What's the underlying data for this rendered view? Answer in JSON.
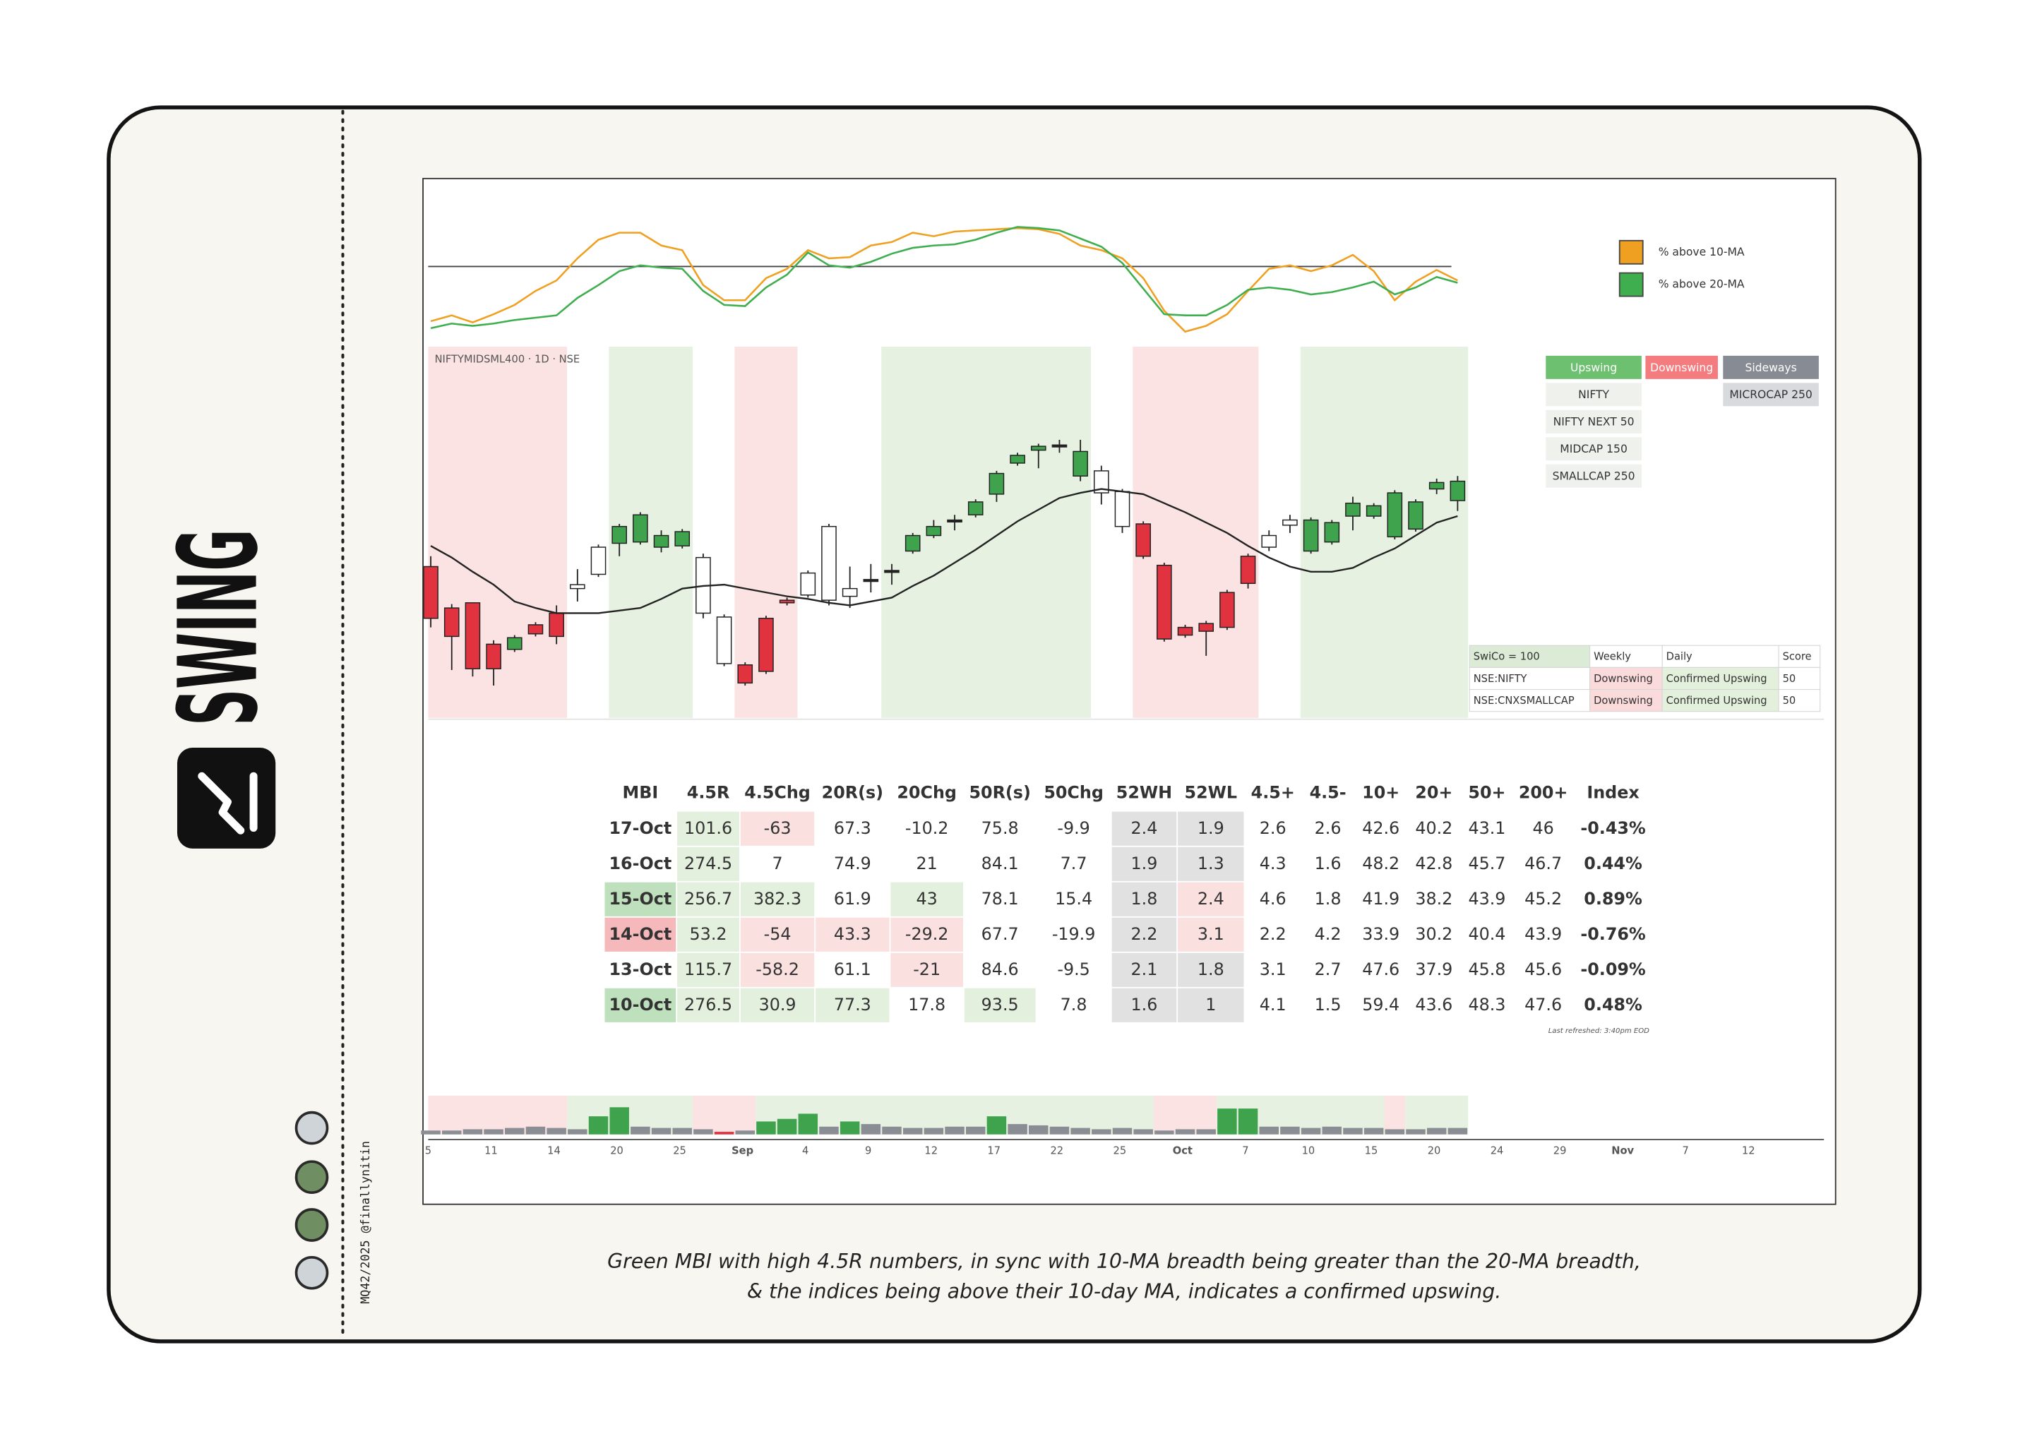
{
  "brand": "SWING",
  "credit": "MQ42/2025 @finallynitin",
  "caption": [
    "Green MBI with high 4.5R numbers, in sync with 10-MA breadth being greater than the 20-MA breadth,",
    "& the indices being above their 10-day MA, indicates a confirmed upswing."
  ],
  "breadth_chart": {
    "type": "line",
    "ylim": [
      0,
      100
    ],
    "reference": 60,
    "series": [
      {
        "name": "% above 10-MA",
        "color": "#f0a020",
        "values": [
          13,
          18,
          12,
          19,
          27,
          39,
          48,
          67,
          83,
          89,
          89,
          78,
          74,
          44,
          31,
          31,
          50,
          58,
          74,
          67,
          68,
          78,
          81,
          89,
          86,
          90,
          91,
          92,
          93,
          92,
          88,
          78,
          74,
          67,
          50,
          22,
          4,
          9,
          19,
          39,
          58,
          61,
          56,
          61,
          70,
          56,
          31,
          47,
          57,
          48
        ]
      },
      {
        "name": "% above 20-MA",
        "color": "#3fae4f",
        "values": [
          7,
          11,
          9,
          11,
          14,
          16,
          18,
          33,
          44,
          56,
          61,
          59,
          58,
          39,
          27,
          26,
          42,
          53,
          72,
          61,
          59,
          64,
          71,
          76,
          78,
          79,
          83,
          89,
          94,
          93,
          91,
          84,
          77,
          63,
          41,
          19,
          18,
          18,
          27,
          40,
          42,
          40,
          36,
          38,
          42,
          47,
          36,
          42,
          51,
          46
        ]
      }
    ]
  },
  "price_chart": {
    "type": "candlestick",
    "title": "NIFTYMIDSML400 · 1D · NSE",
    "ylim": [
      0,
      287
    ],
    "open": [
      117,
      85,
      89,
      57,
      53,
      72,
      81,
      100,
      111,
      135,
      136,
      132,
      133,
      81,
      42,
      41,
      77,
      91,
      95,
      91,
      94,
      107,
      114,
      129,
      141,
      153,
      157,
      173,
      197,
      207,
      211,
      187,
      174,
      148,
      150,
      118,
      70,
      73,
      97,
      125,
      132,
      149,
      129,
      136,
      156,
      156,
      140,
      146,
      177,
      168
    ],
    "high": [
      125,
      88,
      89,
      60,
      64,
      74,
      87,
      115,
      134,
      150,
      159,
      145,
      146,
      127,
      80,
      43,
      79,
      93,
      114,
      150,
      117,
      119,
      119,
      143,
      153,
      157,
      169,
      191,
      205,
      212,
      215,
      215,
      195,
      177,
      152,
      120,
      72,
      75,
      99,
      127,
      145,
      157,
      155,
      153,
      171,
      166,
      176,
      169,
      185,
      187
    ],
    "low": [
      70,
      37,
      32,
      25,
      51,
      63,
      57,
      90,
      109,
      125,
      134,
      128,
      131,
      77,
      40,
      25,
      34,
      87,
      93,
      87,
      85,
      97,
      103,
      127,
      139,
      145,
      155,
      167,
      195,
      193,
      205,
      183,
      165,
      143,
      123,
      59,
      62,
      48,
      68,
      100,
      129,
      143,
      127,
      134,
      145,
      154,
      138,
      144,
      173,
      160
    ],
    "close": [
      77,
      63,
      38,
      38,
      62,
      65,
      63,
      103,
      132,
      148,
      157,
      141,
      144,
      124,
      78,
      27,
      36,
      89,
      112,
      148,
      100,
      107,
      114,
      141,
      148,
      153,
      167,
      189,
      203,
      210,
      211,
      206,
      191,
      175,
      125,
      61,
      64,
      67,
      70,
      104,
      141,
      153,
      153,
      151,
      166,
      164,
      174,
      167,
      182,
      183
    ],
    "colors": [
      "#e0323f",
      "#e0323f",
      "#e0323f",
      "#e0323f",
      "#3fa34d",
      "#e0323f",
      "#e0323f",
      "#ffffff",
      "#ffffff",
      "#3fa34d",
      "#3fa34d",
      "#3fa34d",
      "#3fa34d",
      "#ffffff",
      "#ffffff",
      "#e0323f",
      "#e0323f",
      "#e0323f",
      "#ffffff",
      "#ffffff",
      "#ffffff",
      "#222222",
      "#222222",
      "#3fa34d",
      "#3fa34d",
      "#222222",
      "#3fa34d",
      "#3fa34d",
      "#3fa34d",
      "#3fa34d",
      "#222222",
      "#3fa34d",
      "#ffffff",
      "#ffffff",
      "#e0323f",
      "#e0323f",
      "#e0323f",
      "#e0323f",
      "#e0323f",
      "#e0323f",
      "#ffffff",
      "#ffffff",
      "#3fa34d",
      "#3fa34d",
      "#3fa34d",
      "#3fa34d",
      "#3fa34d",
      "#3fa34d",
      "#3fa34d",
      "#3fa34d"
    ],
    "ma": [
      133,
      124,
      113,
      103,
      90,
      85,
      81,
      81,
      81,
      83,
      85,
      92,
      100,
      102,
      103,
      100,
      97,
      94,
      92,
      89,
      87,
      90,
      93,
      102,
      110,
      120,
      130,
      141,
      152,
      161,
      170,
      174,
      177,
      175,
      173,
      166,
      159,
      151,
      143,
      133,
      124,
      117,
      113,
      113,
      116,
      124,
      131,
      141,
      151,
      156
    ],
    "ma_color": "#222222",
    "bands": [
      {
        "start": 0,
        "end": 6,
        "color": "#fbe3e3"
      },
      {
        "start": 9,
        "end": 12,
        "color": "#e6f1e1"
      },
      {
        "start": 15,
        "end": 17,
        "color": "#fbe3e3"
      },
      {
        "start": 22,
        "end": 31,
        "color": "#e6f1e1"
      },
      {
        "start": 34,
        "end": 39,
        "color": "#fbe3e3"
      },
      {
        "start": 42,
        "end": 49,
        "color": "#e6f1e1"
      }
    ]
  },
  "volume": {
    "type": "bar",
    "ylim": [
      0,
      30
    ],
    "values": [
      3,
      3,
      4,
      4,
      5,
      6,
      5,
      4,
      14,
      21,
      6,
      5,
      5,
      4,
      2,
      3,
      10,
      12,
      16,
      6,
      10,
      8,
      6,
      5,
      5,
      6,
      6,
      14,
      8,
      7,
      6,
      5,
      4,
      5,
      4,
      3,
      4,
      4,
      20,
      20,
      6,
      6,
      5,
      6,
      5,
      5,
      4,
      4,
      5,
      5
    ],
    "colors": [
      "#8a8d94",
      "#8a8d94",
      "#8a8d94",
      "#8a8d94",
      "#8a8d94",
      "#8a8d94",
      "#8a8d94",
      "#8a8d94",
      "#3fa34d",
      "#3fa34d",
      "#8a8d94",
      "#8a8d94",
      "#8a8d94",
      "#8a8d94",
      "#e0323f",
      "#8a8d94",
      "#3fa34d",
      "#3fa34d",
      "#3fa34d",
      "#8a8d94",
      "#3fa34d",
      "#8a8d94",
      "#8a8d94",
      "#8a8d94",
      "#8a8d94",
      "#8a8d94",
      "#8a8d94",
      "#3fa34d",
      "#8a8d94",
      "#8a8d94",
      "#8a8d94",
      "#8a8d94",
      "#8a8d94",
      "#8a8d94",
      "#8a8d94",
      "#8a8d94",
      "#8a8d94",
      "#8a8d94",
      "#3fa34d",
      "#3fa34d",
      "#8a8d94",
      "#8a8d94",
      "#8a8d94",
      "#8a8d94",
      "#8a8d94",
      "#8a8d94",
      "#8a8d94",
      "#8a8d94",
      "#8a8d94",
      "#8a8d94"
    ],
    "bands": [
      {
        "start": 0,
        "end": 6,
        "color": "#fbe3e3"
      },
      {
        "start": 7,
        "end": 12,
        "color": "#e6f1e1"
      },
      {
        "start": 13,
        "end": 15,
        "color": "#fbe3e3"
      },
      {
        "start": 16,
        "end": 34,
        "color": "#e6f1e1"
      },
      {
        "start": 35,
        "end": 37,
        "color": "#fbe3e3"
      },
      {
        "start": 38,
        "end": 45,
        "color": "#e6f1e1"
      },
      {
        "start": 46,
        "end": 46,
        "color": "#fbe3e3"
      },
      {
        "start": 47,
        "end": 49,
        "color": "#e6f1e1"
      }
    ]
  },
  "x_axis": {
    "labels": [
      5,
      11,
      14,
      20,
      25,
      "Sep",
      4,
      9,
      12,
      17,
      22,
      25,
      "Oct",
      7,
      10,
      15,
      20,
      24,
      29,
      "Nov",
      7,
      12
    ]
  },
  "status": {
    "headers": [
      "Upswing",
      "Downswing",
      "Sideways"
    ],
    "columns": [
      [
        "NIFTY",
        "NIFTY NEXT 50",
        "MIDCAP 150",
        "SMALLCAP 250"
      ],
      [],
      [
        "MICROCAP 250"
      ]
    ]
  },
  "swico": {
    "header": [
      "SwiCo = 100",
      "Weekly",
      "Daily",
      "Score"
    ],
    "rows": [
      [
        "NSE:NIFTY",
        "Downswing",
        "Confirmed Upswing",
        "50"
      ],
      [
        "NSE:CNXSMALLCAP",
        "Downswing",
        "Confirmed Upswing",
        "50"
      ]
    ]
  },
  "mbi": {
    "header": [
      "MBI",
      "4.5R",
      "4.5Chg",
      "20R(s)",
      "20Chg",
      "50R(s)",
      "50Chg",
      "52WH",
      "52WL",
      "4.5+",
      "4.5-",
      "10+",
      "20+",
      "50+",
      "200+",
      "Index"
    ],
    "rows": [
      [
        "17-Oct",
        "101.6",
        "-63",
        "67.3",
        "-10.2",
        "75.8",
        "-9.9",
        "2.4",
        "1.9",
        "2.6",
        "2.6",
        "42.6",
        "40.2",
        "43.1",
        "46",
        "-0.43%"
      ],
      [
        "16-Oct",
        "274.5",
        "7",
        "74.9",
        "21",
        "84.1",
        "7.7",
        "1.9",
        "1.3",
        "4.3",
        "1.6",
        "48.2",
        "42.8",
        "45.7",
        "46.7",
        "0.44%"
      ],
      [
        "15-Oct",
        "256.7",
        "382.3",
        "61.9",
        "43",
        "78.1",
        "15.4",
        "1.8",
        "2.4",
        "4.6",
        "1.8",
        "41.9",
        "38.2",
        "43.9",
        "45.2",
        "0.89%"
      ],
      [
        "14-Oct",
        "53.2",
        "-54",
        "43.3",
        "-29.2",
        "67.7",
        "-19.9",
        "2.2",
        "3.1",
        "2.2",
        "4.2",
        "33.9",
        "30.2",
        "40.4",
        "43.9",
        "-0.76%"
      ],
      [
        "13-Oct",
        "115.7",
        "-58.2",
        "61.1",
        "-21",
        "84.6",
        "-9.5",
        "2.1",
        "1.8",
        "3.1",
        "2.7",
        "47.6",
        "37.9",
        "45.8",
        "45.6",
        "-0.09%"
      ],
      [
        "10-Oct",
        "276.5",
        "30.9",
        "77.3",
        "17.8",
        "93.5",
        "7.8",
        "1.6",
        "1",
        "4.1",
        "1.5",
        "59.4",
        "43.6",
        "48.3",
        "47.6",
        "0.48%"
      ]
    ],
    "cell_colors": [
      [
        null,
        "#e2f0dd",
        "#fbe0e0",
        null,
        null,
        null,
        null,
        "#e1e1e1",
        "#e1e1e1",
        null,
        null,
        null,
        null,
        null,
        null,
        null
      ],
      [
        null,
        "#e2f0dd",
        null,
        null,
        null,
        null,
        null,
        "#e1e1e1",
        "#e1e1e1",
        null,
        null,
        null,
        null,
        null,
        null,
        null
      ],
      [
        "#bfe0bc",
        "#e2f0dd",
        "#e2f0dd",
        null,
        "#e2f0dd",
        null,
        null,
        "#e1e1e1",
        "#fbe0e0",
        null,
        null,
        null,
        null,
        null,
        null,
        null
      ],
      [
        "#f6b9bb",
        "#e2f0dd",
        "#fbe0e0",
        "#fbe0e0",
        "#fbe0e0",
        null,
        null,
        "#e1e1e1",
        "#fbe0e0",
        null,
        null,
        null,
        null,
        null,
        null,
        null
      ],
      [
        null,
        "#e2f0dd",
        "#fbe0e0",
        null,
        "#fbe0e0",
        null,
        null,
        "#e1e1e1",
        "#e1e1e1",
        null,
        null,
        null,
        null,
        null,
        null,
        null
      ],
      [
        "#bfe0bc",
        "#e2f0dd",
        "#e2f0dd",
        "#e2f0dd",
        null,
        "#e2f0dd",
        null,
        "#e1e1e1",
        "#e1e1e1",
        null,
        null,
        null,
        null,
        null,
        null,
        null
      ]
    ],
    "note": "Last refreshed: 3:40pm EOD"
  }
}
